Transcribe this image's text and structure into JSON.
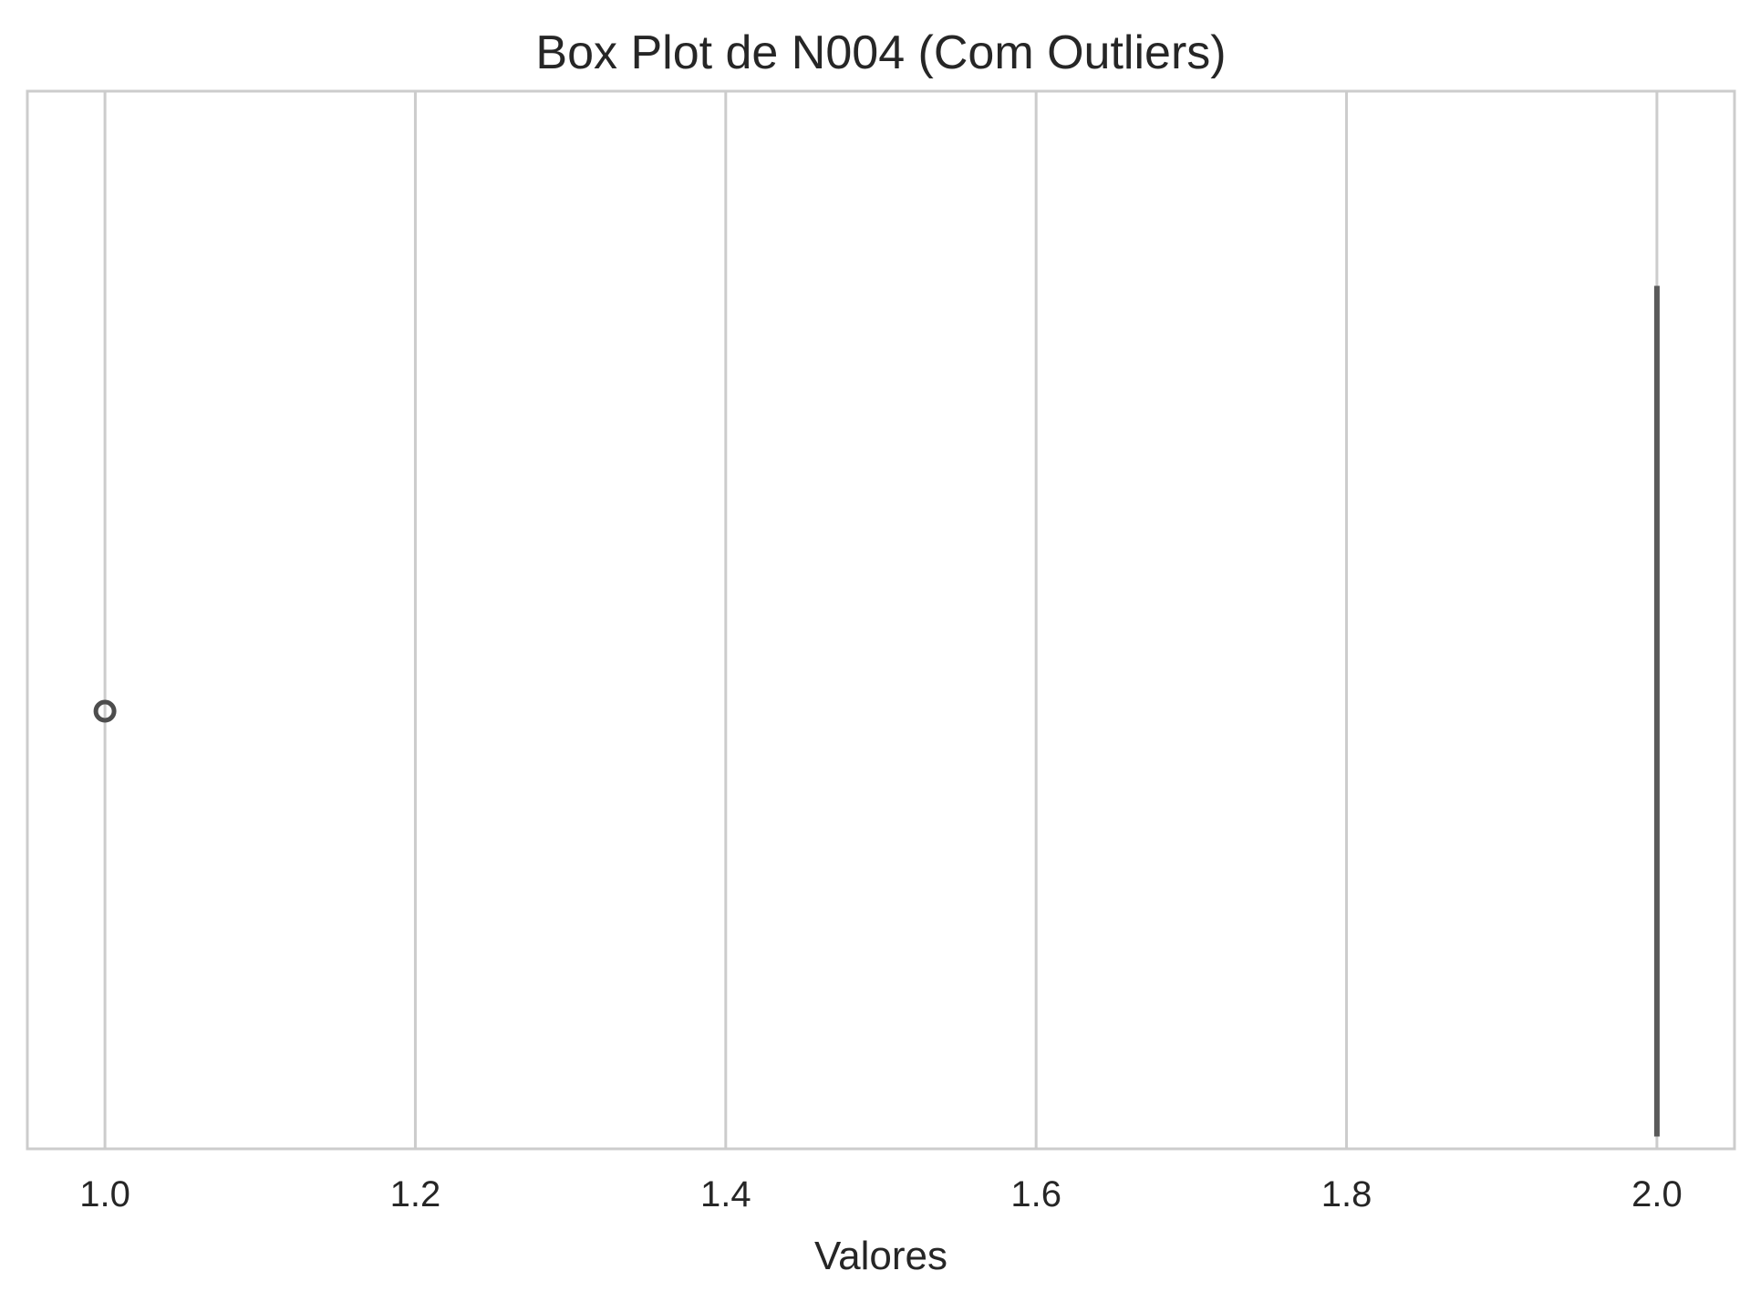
{
  "chart_data": {
    "type": "box",
    "title": "Box Plot de N004 (Com Outliers)",
    "xlabel": "Valores",
    "ylabel": "",
    "orientation": "horizontal",
    "xlim": [
      0.95,
      2.05
    ],
    "x_ticks": [
      1.0,
      1.2,
      1.4,
      1.6,
      1.8,
      2.0
    ],
    "x_tick_labels": [
      "1.0",
      "1.2",
      "1.4",
      "1.6",
      "1.8",
      "2.0"
    ],
    "grid": "vertical",
    "boxes": [
      {
        "whisker_low": 2.0,
        "q1": 2.0,
        "median": 2.0,
        "q3": 2.0,
        "whisker_high": 2.0,
        "outliers": [
          1.0
        ]
      }
    ],
    "colors": {
      "grid": "#cccccc",
      "frame": "#cccccc",
      "box": "#5a5a5a",
      "outlier": "#4d4d4d",
      "text": "#262626"
    }
  }
}
